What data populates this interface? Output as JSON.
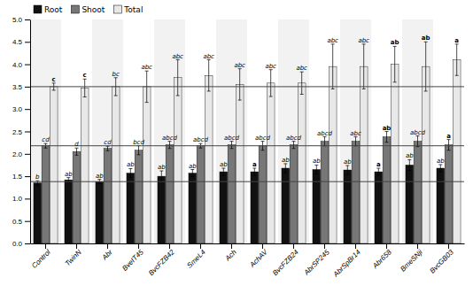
{
  "chart_data": {
    "type": "bar",
    "categories": [
      "Control",
      "TwinN",
      "Abr",
      "BveIT45",
      "BvcFZB42",
      "SmeL4",
      "Ach",
      "AchAV",
      "BvcFZB24",
      "AbrSP245",
      "AbrSpBr14",
      "Abr658",
      "BmeSNji",
      "BvcGB03"
    ],
    "series": [
      {
        "name": "Root",
        "color": "#111111",
        "values": [
          1.35,
          1.42,
          1.38,
          1.57,
          1.5,
          1.57,
          1.6,
          1.6,
          1.68,
          1.65,
          1.64,
          1.6,
          1.75,
          1.68
        ],
        "errors": [
          0.05,
          0.05,
          0.05,
          0.1,
          0.12,
          0.08,
          0.08,
          0.08,
          0.1,
          0.1,
          0.1,
          0.08,
          0.12,
          0.08
        ],
        "labels": [
          "b",
          "ab",
          "ab",
          "ab",
          "ab",
          "ab",
          "ab",
          "a",
          "ab",
          "ab",
          "ab",
          "a",
          "ab",
          "ab"
        ],
        "label_bold": [
          false,
          false,
          false,
          false,
          false,
          false,
          false,
          true,
          false,
          false,
          false,
          true,
          false,
          false
        ]
      },
      {
        "name": "Shoot",
        "color": "#777777",
        "values": [
          2.18,
          2.05,
          2.12,
          2.08,
          2.2,
          2.18,
          2.2,
          2.18,
          2.2,
          2.28,
          2.28,
          2.38,
          2.28,
          2.2
        ],
        "errors": [
          0.05,
          0.08,
          0.05,
          0.1,
          0.08,
          0.05,
          0.08,
          0.1,
          0.08,
          0.1,
          0.1,
          0.12,
          0.12,
          0.12
        ],
        "labels": [
          "cd",
          "d",
          "cd",
          "bcd",
          "abcd",
          "abcd",
          "abcd",
          "abcd",
          "abcd",
          "abcd",
          "abc",
          "ab",
          "abcd",
          "a"
        ],
        "label_bold": [
          false,
          false,
          false,
          false,
          false,
          false,
          false,
          false,
          false,
          false,
          false,
          true,
          false,
          true
        ]
      },
      {
        "name": "Total",
        "color": "#e8e8e8",
        "values": [
          3.5,
          3.47,
          3.5,
          3.5,
          3.7,
          3.75,
          3.55,
          3.58,
          3.58,
          3.95,
          3.95,
          4.0,
          3.95,
          4.1
        ],
        "errors": [
          0.08,
          0.2,
          0.2,
          0.35,
          0.4,
          0.35,
          0.35,
          0.3,
          0.25,
          0.5,
          0.5,
          0.4,
          0.55,
          0.35
        ],
        "labels": [
          "c",
          "c",
          "bc",
          "abc",
          "abc",
          "abc",
          "abc",
          "abc",
          "abc",
          "abc",
          "abc",
          "ab",
          "ab",
          "a"
        ],
        "label_bold": [
          true,
          true,
          false,
          false,
          false,
          false,
          false,
          false,
          false,
          false,
          false,
          true,
          true,
          true
        ]
      }
    ],
    "reference_lines": [
      3.5,
      2.18,
      1.38
    ],
    "reference_line_color": "#444444",
    "ylim": [
      0,
      5
    ],
    "yticks": [
      {
        "value": 0,
        "label": "0.0"
      },
      0.5,
      {
        "value": 1,
        "label": "1.0"
      },
      1.5,
      {
        "value": 2,
        "label": "2.0"
      },
      2.5,
      {
        "value": 3,
        "label": "3.0"
      },
      3.5,
      {
        "value": 4,
        "label": "4.0"
      },
      4.5,
      {
        "value": 5,
        "label": "5.0"
      }
    ],
    "grid": false,
    "legend": "upper left"
  }
}
